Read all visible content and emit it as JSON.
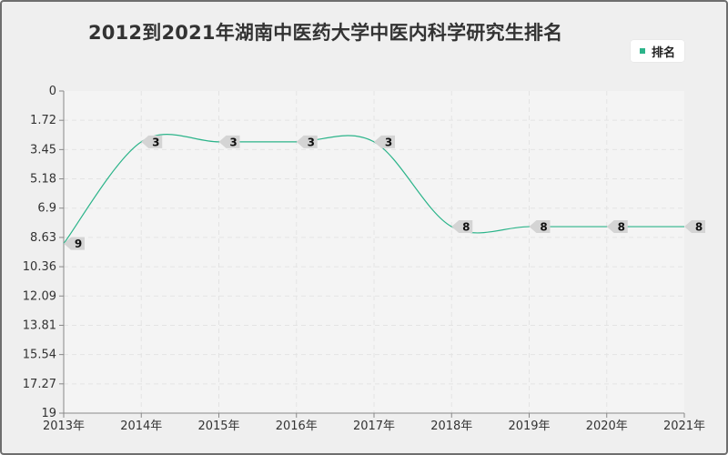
{
  "title": "2012到2021年湖南中医药大学中医内科学研究生排名",
  "legend": {
    "label": "排名"
  },
  "colors": {
    "line": "#2cb48a",
    "label_bg": "#d4d4d4",
    "grid": "#e3e3e3",
    "plot_bg": "#f4f4f4"
  },
  "chart_data": {
    "type": "line",
    "title": "2012到2021年湖南中医药大学中医内科学研究生排名",
    "xlabel": "",
    "ylabel": "",
    "x": [
      "2013年",
      "2014年",
      "2015年",
      "2016年",
      "2017年",
      "2018年",
      "2019年",
      "2020年",
      "2021年"
    ],
    "y_ticks": [
      "0",
      "1.72",
      "3.45",
      "5.18",
      "6.9",
      "8.63",
      "10.36",
      "12.09",
      "13.81",
      "15.54",
      "17.27",
      "19"
    ],
    "ylim": [
      0,
      19
    ],
    "y_inverted": true,
    "grid": true,
    "legend_position": "top-right",
    "series": [
      {
        "name": "排名",
        "values": [
          9,
          3,
          3,
          3,
          3,
          8,
          8,
          8,
          8
        ],
        "point_labels": [
          "9",
          "3",
          "3",
          "3",
          "3",
          "8",
          "8",
          "8",
          "8"
        ],
        "y_plot": [
          9,
          3,
          3,
          3,
          3,
          8,
          8,
          8,
          8
        ]
      }
    ]
  }
}
